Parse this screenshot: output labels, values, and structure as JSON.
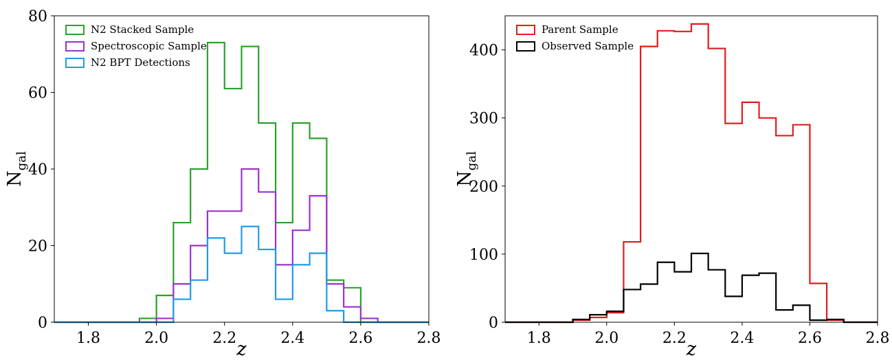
{
  "chart_data": [
    {
      "type": "histogram",
      "xlabel": "z",
      "ylabel": "N",
      "ylabel_sub": "gal",
      "xlim": [
        1.7,
        2.8
      ],
      "ylim": [
        0,
        80
      ],
      "xticks": [
        "1.8",
        "2.0",
        "2.2",
        "2.4",
        "2.6",
        "2.8"
      ],
      "yticks": [
        "0",
        "20",
        "40",
        "60",
        "80"
      ],
      "bin_width": 0.05,
      "legend_position": "upper-left",
      "series": [
        {
          "name": "N2 Stacked Sample",
          "color": "#2ca02c",
          "bins_start": [
            1.7,
            1.75,
            1.8,
            1.85,
            1.9,
            1.95,
            2.0,
            2.05,
            2.1,
            2.15,
            2.2,
            2.25,
            2.3,
            2.35,
            2.4,
            2.45,
            2.5,
            2.55,
            2.6,
            2.65,
            2.7,
            2.75
          ],
          "values": [
            0,
            0,
            0,
            0,
            0,
            1,
            7,
            26,
            40,
            73,
            61,
            72,
            52,
            26,
            52,
            48,
            11,
            9,
            0,
            0,
            0,
            0
          ]
        },
        {
          "name": "Spectroscopic Sample",
          "color": "#9932cc",
          "bins_start": [
            1.7,
            1.75,
            1.8,
            1.85,
            1.9,
            1.95,
            2.0,
            2.05,
            2.1,
            2.15,
            2.2,
            2.25,
            2.3,
            2.35,
            2.4,
            2.45,
            2.5,
            2.55,
            2.6,
            2.65,
            2.7,
            2.75
          ],
          "values": [
            0,
            0,
            0,
            0,
            0,
            0,
            1,
            10,
            20,
            29,
            29,
            40,
            34,
            15,
            24,
            33,
            10,
            4,
            1,
            0,
            0,
            0
          ]
        },
        {
          "name": "N2 BPT Detections",
          "color": "#1f9be5",
          "bins_start": [
            1.7,
            1.75,
            1.8,
            1.85,
            1.9,
            1.95,
            2.0,
            2.05,
            2.1,
            2.15,
            2.2,
            2.25,
            2.3,
            2.35,
            2.4,
            2.45,
            2.5,
            2.55,
            2.6,
            2.65,
            2.7,
            2.75
          ],
          "values": [
            0,
            0,
            0,
            0,
            0,
            0,
            0,
            6,
            11,
            22,
            18,
            25,
            19,
            6,
            15,
            18,
            3,
            0,
            0,
            0,
            0,
            0
          ]
        }
      ]
    },
    {
      "type": "histogram",
      "xlabel": "z",
      "ylabel": "N",
      "ylabel_sub": "gal",
      "xlim": [
        1.7,
        2.8
      ],
      "ylim": [
        0,
        450
      ],
      "xticks": [
        "1.8",
        "2.0",
        "2.2",
        "2.4",
        "2.6",
        "2.8"
      ],
      "yticks": [
        "0",
        "100",
        "200",
        "300",
        "400"
      ],
      "bin_width": 0.05,
      "legend_position": "upper-left",
      "series": [
        {
          "name": "Parent Sample",
          "color": "#e31a1c",
          "bins_start": [
            1.7,
            1.75,
            1.8,
            1.85,
            1.9,
            1.95,
            2.0,
            2.05,
            2.1,
            2.15,
            2.2,
            2.25,
            2.3,
            2.35,
            2.4,
            2.45,
            2.5,
            2.55,
            2.6,
            2.65,
            2.7,
            2.75
          ],
          "values": [
            0,
            0,
            0,
            0,
            3,
            7,
            14,
            118,
            405,
            428,
            427,
            438,
            402,
            292,
            323,
            300,
            274,
            290,
            57,
            3,
            0,
            0
          ]
        },
        {
          "name": "Observed Sample",
          "color": "#000000",
          "bins_start": [
            1.7,
            1.75,
            1.8,
            1.85,
            1.9,
            1.95,
            2.0,
            2.05,
            2.1,
            2.15,
            2.2,
            2.25,
            2.3,
            2.35,
            2.4,
            2.45,
            2.5,
            2.55,
            2.6,
            2.65,
            2.7,
            2.75
          ],
          "values": [
            0,
            0,
            0,
            0,
            4,
            11,
            16,
            48,
            56,
            88,
            74,
            101,
            77,
            38,
            69,
            72,
            18,
            25,
            3,
            4,
            0,
            0
          ]
        }
      ]
    }
  ]
}
